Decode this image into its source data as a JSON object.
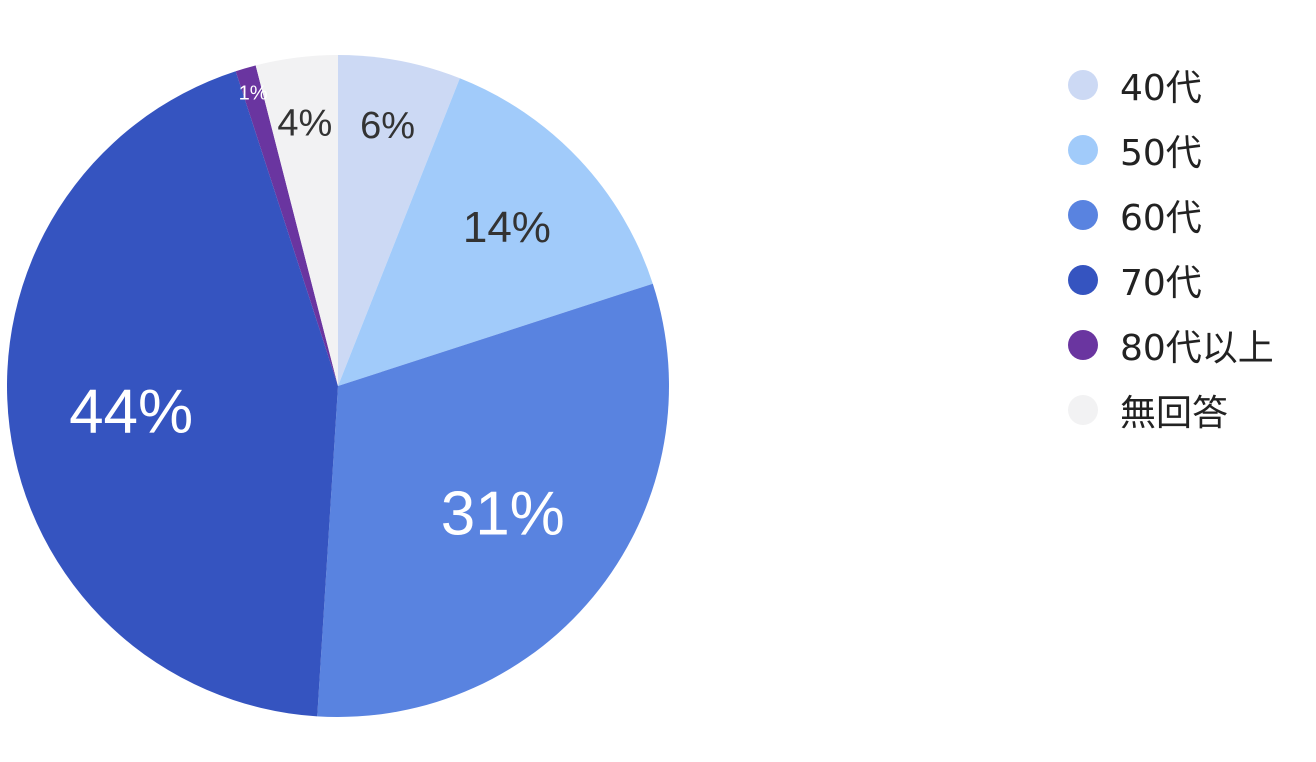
{
  "chart_data": {
    "type": "pie",
    "start_angle": "top",
    "direction": "clockwise",
    "legend_position": "right",
    "slices": [
      {
        "name": "40代",
        "value": 6,
        "label": "6%",
        "color": "#ccd9f4",
        "label_color": "#333333"
      },
      {
        "name": "50代",
        "value": 14,
        "label": "14%",
        "color": "#a1cbfa",
        "label_color": "#333333"
      },
      {
        "name": "60代",
        "value": 31,
        "label": "31%",
        "color": "#5983e0",
        "label_color": "#ffffff"
      },
      {
        "name": "70代",
        "value": 44,
        "label": "44%",
        "color": "#3554c0",
        "label_color": "#ffffff"
      },
      {
        "name": "80代以上",
        "value": 1,
        "label": "1%",
        "color": "#6a35a0",
        "label_color": "#ffffff"
      },
      {
        "name": "無回答",
        "value": 4,
        "label": "4%",
        "color": "#f2f2f3",
        "label_color": "#333333"
      }
    ]
  }
}
